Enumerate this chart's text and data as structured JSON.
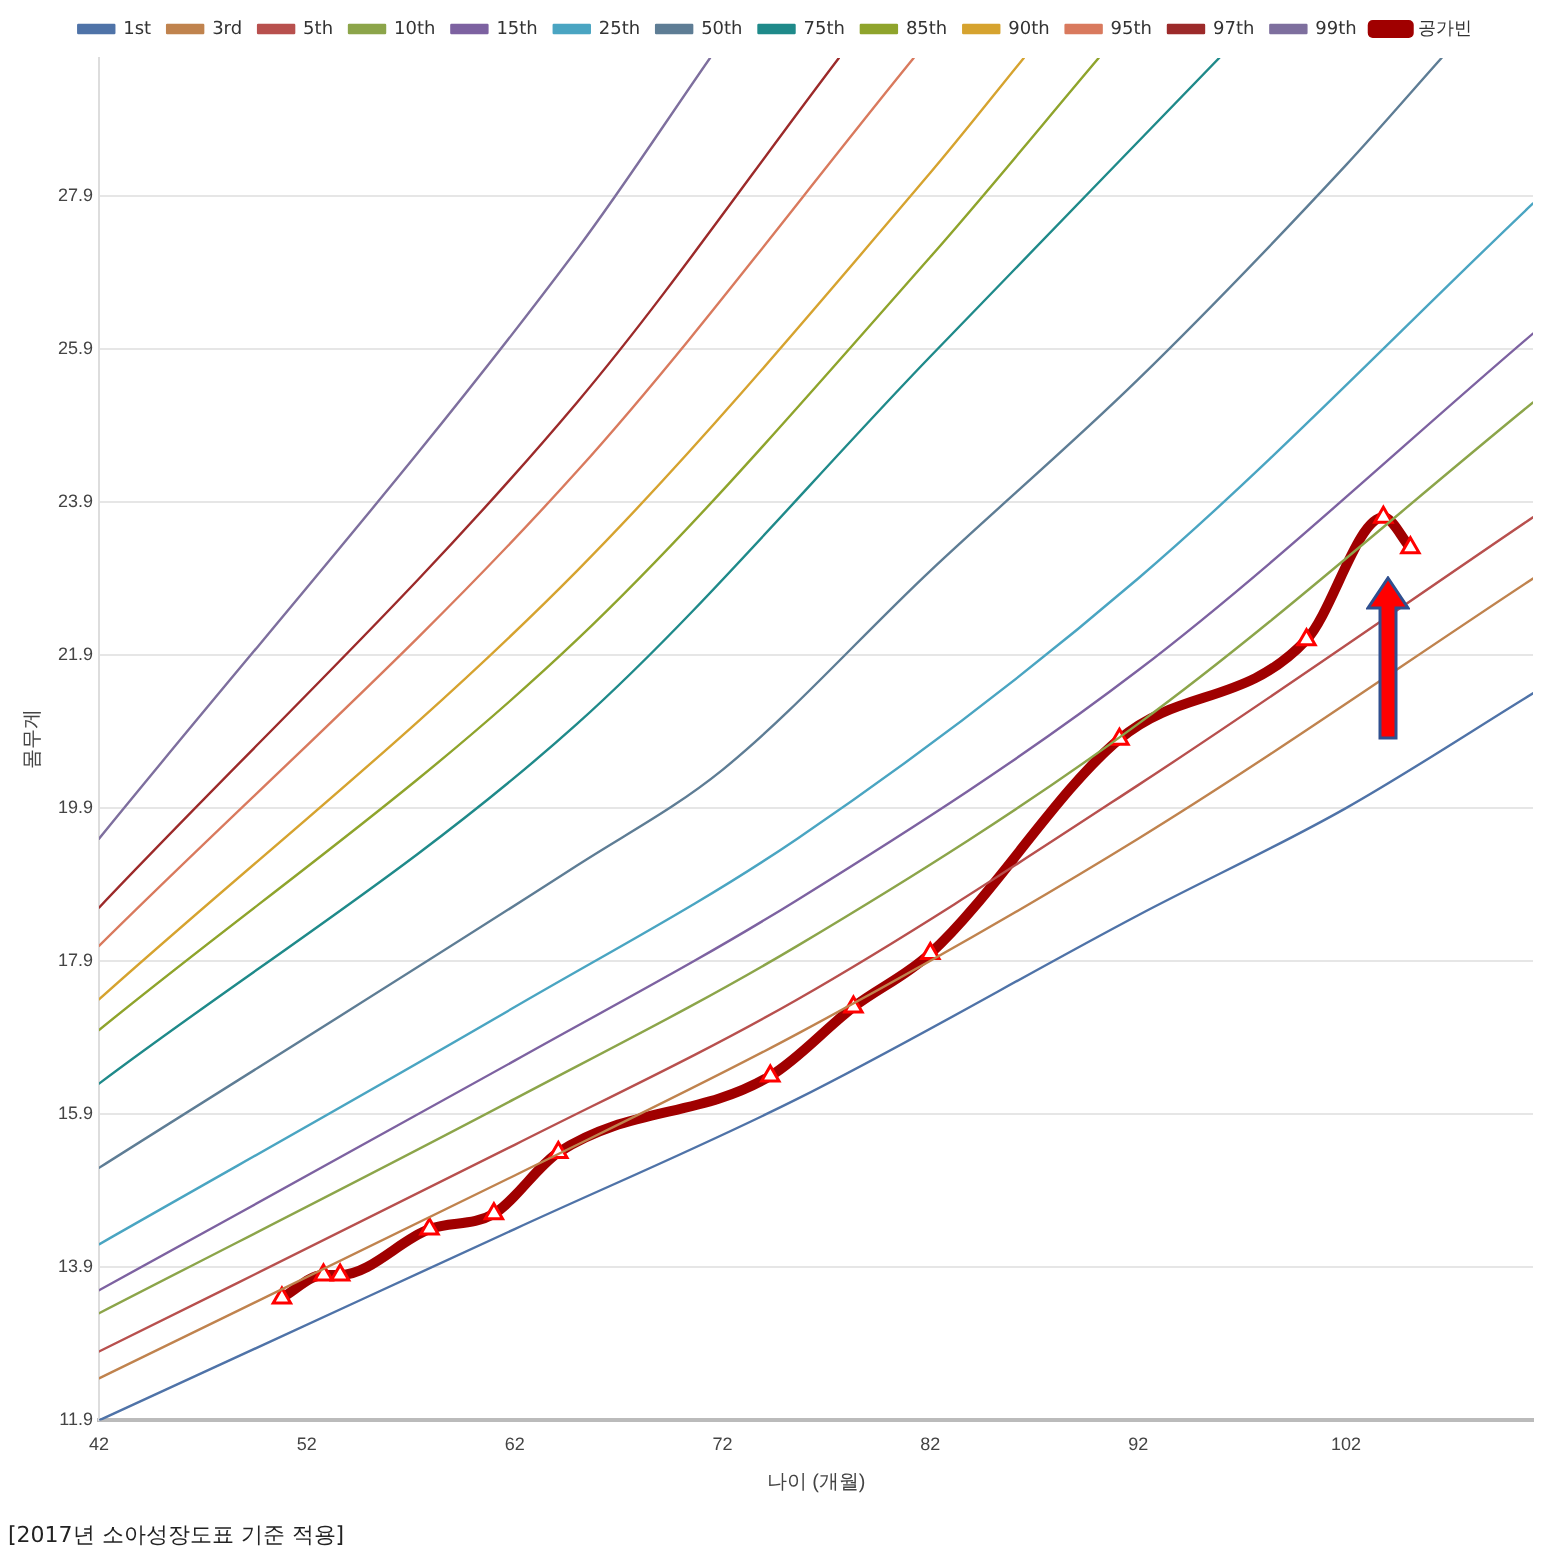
{
  "chart_data": {
    "type": "line",
    "xlabel": "나이 (개월)",
    "ylabel": "몸무게",
    "annotations": [
      "[2017년 소아성장도표 기준 적용]"
    ],
    "xlim": [
      42,
      111
    ],
    "xticks": [
      42,
      52,
      62,
      72,
      82,
      92,
      102
    ],
    "ylim": [
      11.9,
      29.7
    ],
    "yticks": [
      11.9,
      13.9,
      15.9,
      17.9,
      19.9,
      21.9,
      23.9,
      25.9,
      27.9
    ],
    "grid": "y",
    "legend": "top",
    "marker": "none",
    "line_style": "solid",
    "series": [
      {
        "name": "1st",
        "color": "#4f73a8",
        "x": [
          42,
          62,
          75.6,
          92,
          102,
          111
        ],
        "values": [
          11.9,
          14.4,
          16.1,
          18.5,
          19.9,
          21.4
        ]
      },
      {
        "name": "3rd",
        "color": "#c0834e",
        "x": [
          42,
          62,
          75.6,
          92,
          111
        ],
        "values": [
          12.45,
          15.1,
          16.95,
          19.5,
          22.9
        ]
      },
      {
        "name": "5th",
        "color": "#b8504e",
        "x": [
          42,
          62,
          75.6,
          92,
          111
        ],
        "values": [
          12.8,
          15.5,
          17.4,
          20.2,
          23.7
        ]
      },
      {
        "name": "10th",
        "color": "#8ca54a",
        "x": [
          42,
          62,
          75.6,
          92,
          111
        ],
        "values": [
          13.3,
          16.1,
          18.1,
          21.0,
          25.2
        ]
      },
      {
        "name": "15th",
        "color": "#7d62a1",
        "x": [
          42,
          62,
          75.6,
          92,
          111
        ],
        "values": [
          13.6,
          16.6,
          18.7,
          21.7,
          26.1
        ]
      },
      {
        "name": "25th",
        "color": "#4aa5c2",
        "x": [
          42,
          62,
          75.6,
          92,
          111
        ],
        "values": [
          14.2,
          17.3,
          19.5,
          22.9,
          27.8
        ]
      },
      {
        "name": "50th",
        "color": "#5e7d95",
        "x": [
          42,
          65,
          72,
          82,
          92,
          102,
          106.6
        ],
        "values": [
          15.2,
          19.15,
          20.4,
          23.0,
          25.5,
          28.3,
          29.7
        ]
      },
      {
        "name": "75th",
        "color": "#1f8a8a",
        "x": [
          42,
          65,
          82,
          95.9
        ],
        "values": [
          16.3,
          21.0,
          25.8,
          29.7
        ]
      },
      {
        "name": "85th",
        "color": "#8fa42c",
        "x": [
          42,
          65,
          82,
          90.1
        ],
        "values": [
          17.0,
          22.1,
          27.1,
          29.7
        ]
      },
      {
        "name": "90th",
        "color": "#d6a32f",
        "x": [
          42,
          65,
          82,
          86.5
        ],
        "values": [
          17.4,
          23.0,
          28.2,
          29.7
        ]
      },
      {
        "name": "95th",
        "color": "#d97a5e",
        "x": [
          42,
          65,
          81.2
        ],
        "values": [
          18.1,
          24.3,
          29.7
        ]
      },
      {
        "name": "97th",
        "color": "#9c2a2a",
        "x": [
          42,
          65,
          77.6
        ],
        "values": [
          18.6,
          25.2,
          29.7
        ]
      },
      {
        "name": "99th",
        "color": "#7e6f9e",
        "x": [
          42,
          65,
          71.4
        ],
        "values": [
          19.5,
          27.2,
          29.7
        ]
      },
      {
        "name": "공가빈",
        "color": "#a00000",
        "marker": "triangle",
        "x": [
          50.8,
          52.8,
          53.6,
          57.9,
          61,
          64.1,
          74.3,
          78.3,
          82,
          91.1,
          100.1,
          103.8,
          105.1
        ],
        "values": [
          13.5,
          13.8,
          13.8,
          14.4,
          14.6,
          15.4,
          16.4,
          17.3,
          18.0,
          20.8,
          22.1,
          23.7,
          23.3
        ]
      }
    ]
  }
}
